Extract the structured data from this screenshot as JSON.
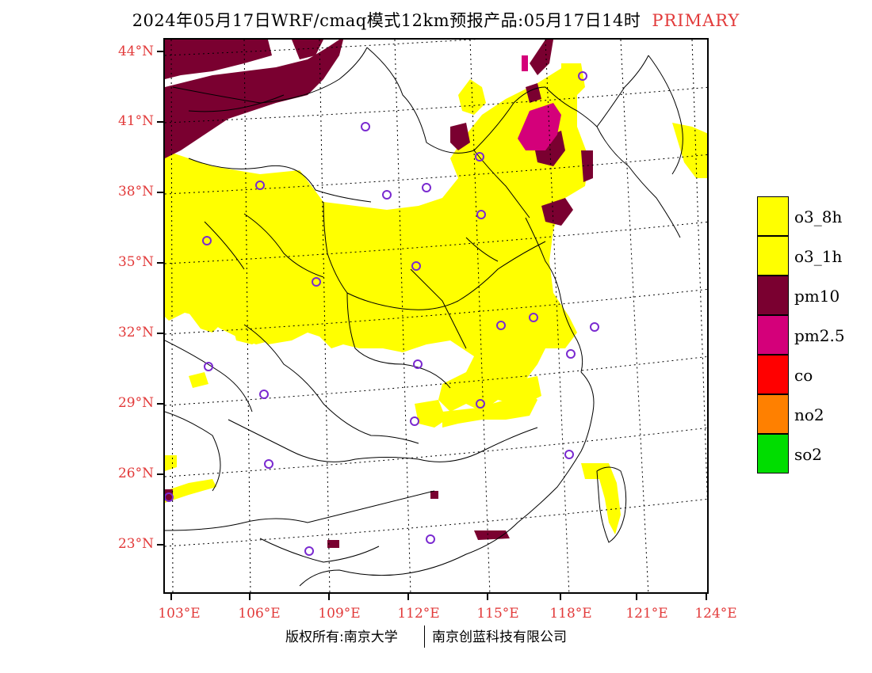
{
  "header": {
    "title": "2024年05月17日WRF/cmaq模式12km预报产品:05月17日14时",
    "tag": "PRIMARY"
  },
  "axes": {
    "lat_labels": [
      "44°N",
      "41°N",
      "38°N",
      "35°N",
      "32°N",
      "29°N",
      "26°N",
      "23°N"
    ],
    "lon_labels": [
      "103°E",
      "106°E",
      "109°E",
      "112°E",
      "115°E",
      "118°E",
      "121°E",
      "124°E"
    ]
  },
  "legend": {
    "items": [
      {
        "label": "o3_8h",
        "color": "#ffff00"
      },
      {
        "label": "o3_1h",
        "color": "#ffff00"
      },
      {
        "label": "pm10",
        "color": "#7a0030"
      },
      {
        "label": "pm2.5",
        "color": "#d4007a"
      },
      {
        "label": "co",
        "color": "#ff0000"
      },
      {
        "label": "no2",
        "color": "#ff8000"
      },
      {
        "label": "so2",
        "color": "#00dd00"
      }
    ]
  },
  "footer": {
    "copyright": "版权所有:南京大学",
    "company": "南京创蓝科技有限公司"
  },
  "colors": {
    "o3": "#ffff00",
    "pm10": "#7a0030",
    "pm25": "#d4007a",
    "station_marker": "#7a2ad0",
    "axis_label": "#e23a3a"
  }
}
